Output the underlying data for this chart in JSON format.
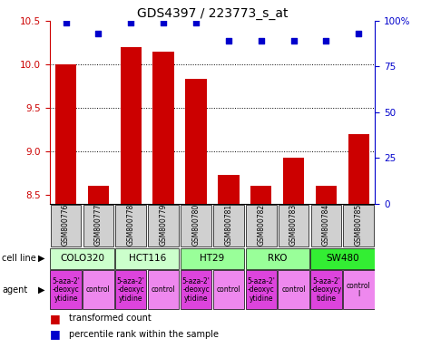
{
  "title": "GDS4397 / 223773_s_at",
  "samples": [
    "GSM800776",
    "GSM800777",
    "GSM800778",
    "GSM800779",
    "GSM800780",
    "GSM800781",
    "GSM800782",
    "GSM800783",
    "GSM800784",
    "GSM800785"
  ],
  "bar_values": [
    10.0,
    8.6,
    10.2,
    10.15,
    9.83,
    8.73,
    8.6,
    8.93,
    8.6,
    9.2
  ],
  "percentile_values": [
    99,
    93,
    99,
    99,
    99,
    89,
    89,
    89,
    89,
    93
  ],
  "ylim": [
    8.4,
    10.5
  ],
  "yticks": [
    8.5,
    9.0,
    9.5,
    10.0,
    10.5
  ],
  "right_yticks": [
    0,
    25,
    50,
    75,
    100
  ],
  "bar_color": "#cc0000",
  "dot_color": "#0000cc",
  "cell_lines": [
    {
      "name": "COLO320",
      "span": [
        0,
        2
      ],
      "color": "#ccffcc"
    },
    {
      "name": "HCT116",
      "span": [
        2,
        4
      ],
      "color": "#ccffcc"
    },
    {
      "name": "HT29",
      "span": [
        4,
        6
      ],
      "color": "#99ff99"
    },
    {
      "name": "RKO",
      "span": [
        6,
        8
      ],
      "color": "#99ff99"
    },
    {
      "name": "SW480",
      "span": [
        8,
        10
      ],
      "color": "#33ee33"
    }
  ],
  "agents": [
    {
      "name": "5-aza-2'\n-deoxyc\nytidine",
      "span": [
        0,
        1
      ],
      "color": "#dd44dd"
    },
    {
      "name": "control",
      "span": [
        1,
        2
      ],
      "color": "#ee88ee"
    },
    {
      "name": "5-aza-2'\n-deoxyc\nytidine",
      "span": [
        2,
        3
      ],
      "color": "#dd44dd"
    },
    {
      "name": "control",
      "span": [
        3,
        4
      ],
      "color": "#ee88ee"
    },
    {
      "name": "5-aza-2'\n-deoxyc\nytidine",
      "span": [
        4,
        5
      ],
      "color": "#dd44dd"
    },
    {
      "name": "control",
      "span": [
        5,
        6
      ],
      "color": "#ee88ee"
    },
    {
      "name": "5-aza-2'\n-deoxyc\nytidine",
      "span": [
        6,
        7
      ],
      "color": "#dd44dd"
    },
    {
      "name": "control",
      "span": [
        7,
        8
      ],
      "color": "#ee88ee"
    },
    {
      "name": "5-aza-2'\n-deoxycy\ntidine",
      "span": [
        8,
        9
      ],
      "color": "#dd44dd"
    },
    {
      "name": "control\nl",
      "span": [
        9,
        10
      ],
      "color": "#ee88ee"
    }
  ],
  "sample_box_color": "#d0d0d0",
  "background_color": "#ffffff",
  "label_fontsize": 7,
  "tick_fontsize": 7.5,
  "title_fontsize": 10,
  "agent_fontsize": 5.5,
  "cell_fontsize": 7.5
}
